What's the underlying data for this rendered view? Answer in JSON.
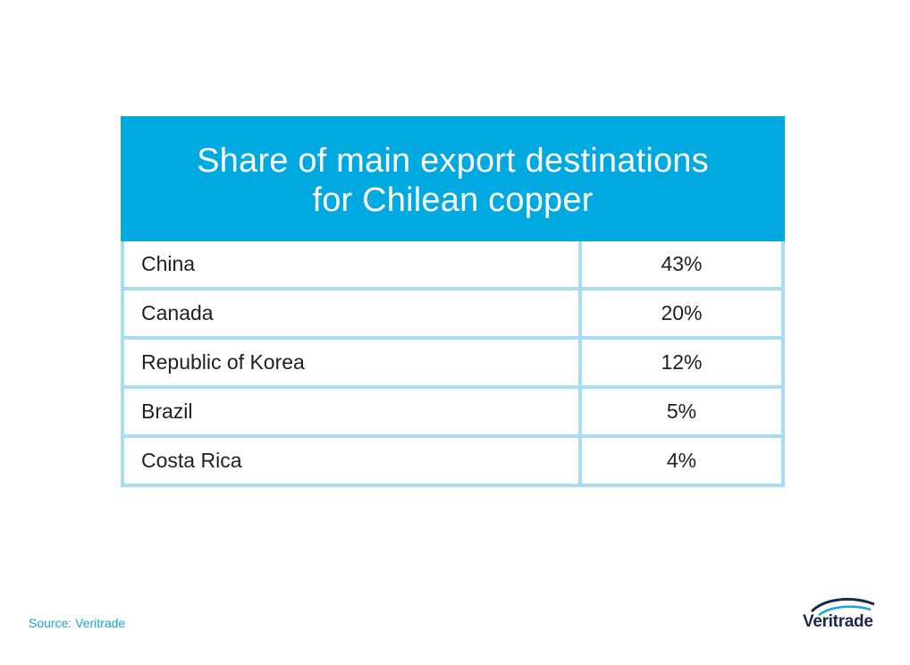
{
  "header": {
    "title_line1": "Share of main export destinations",
    "title_line2": "for Chilean copper"
  },
  "chart_data": {
    "type": "table",
    "title": "Share of main export destinations for Chilean copper",
    "rows": [
      {
        "country": "China",
        "share": "43%"
      },
      {
        "country": "Canada",
        "share": "20%"
      },
      {
        "country": "Republic of Korea",
        "share": "12%"
      },
      {
        "country": "Brazil",
        "share": "5%"
      },
      {
        "country": "Costa Rica",
        "share": "4%"
      }
    ],
    "values": [
      43,
      20,
      12,
      5,
      4
    ],
    "categories": [
      "China",
      "Canada",
      "Republic of Korea",
      "Brazil",
      "Costa Rica"
    ]
  },
  "footer": {
    "source": "Source: Veritrade",
    "logo_text": "Veritrade"
  },
  "colors": {
    "header_bg": "#00a9e0",
    "grid": "#a9dcf2",
    "source_text": "#1aa3dc"
  }
}
